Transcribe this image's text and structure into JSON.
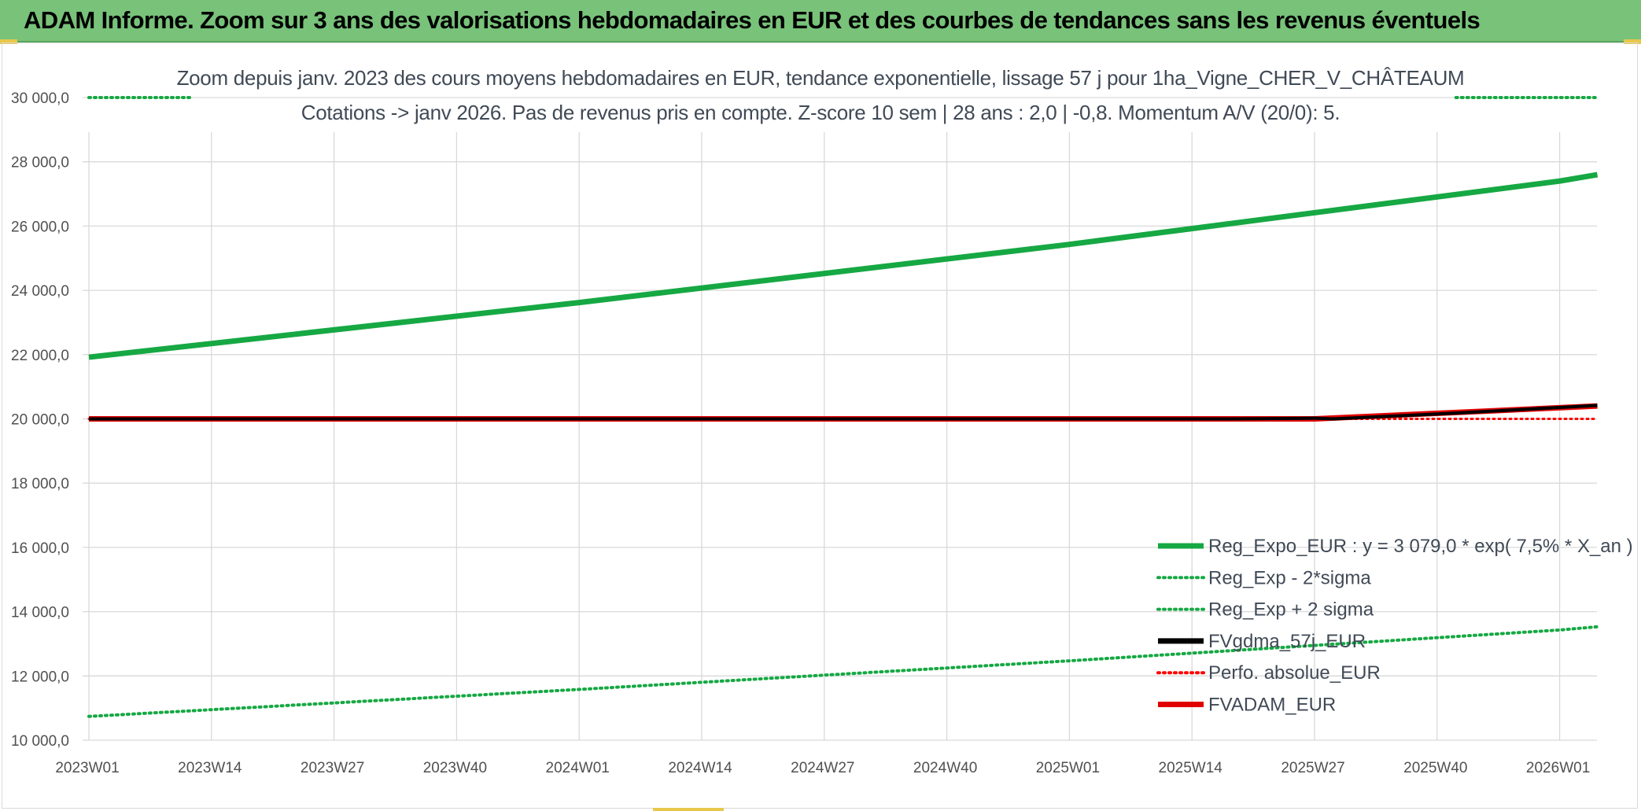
{
  "banner": {
    "title": "ADAM Informe. Zoom sur 3 ans des valorisations hebdomadaires en EUR et des courbes de tendances sans les revenus éventuels"
  },
  "chart_data": {
    "type": "line",
    "title_line1": "Zoom depuis janv. 2023 des cours moyens hebdomadaires en EUR, tendance exponentielle, lissage 57 j pour 1ha_Vigne_CHER_V_CHÂTEAUM",
    "title_line2": "Cotations -> janv 2026. Pas de revenus pris en compte. Z-score 10 sem | 28 ans : 2,0 | -0,8. Momentum A/V (20/0): 5.",
    "xlabel": "",
    "ylabel": "",
    "ylim": [
      10000,
      30000
    ],
    "y_ticks": [
      "10 000,0",
      "12 000,0",
      "14 000,0",
      "16 000,0",
      "18 000,0",
      "20 000,0",
      "22 000,0",
      "24 000,0",
      "26 000,0",
      "28 000,0",
      "30 000,0"
    ],
    "x_range": [
      0,
      162
    ],
    "x_ticks": [
      {
        "label": "2023W01",
        "week": 0
      },
      {
        "label": "2023W14",
        "week": 13
      },
      {
        "label": "2023W27",
        "week": 26
      },
      {
        "label": "2023W40",
        "week": 39
      },
      {
        "label": "2024W01",
        "week": 52
      },
      {
        "label": "2024W14",
        "week": 65
      },
      {
        "label": "2024W27",
        "week": 78
      },
      {
        "label": "2024W40",
        "week": 91
      },
      {
        "label": "2025W01",
        "week": 104
      },
      {
        "label": "2025W14",
        "week": 117
      },
      {
        "label": "2025W27",
        "week": 130
      },
      {
        "label": "2025W40",
        "week": 143
      },
      {
        "label": "2026W01",
        "week": 156
      }
    ],
    "grid": true,
    "legend_position": "bottom-right",
    "series": [
      {
        "name": "Reg_Expo_EUR : y = 3 079,0 * exp( 7,5% *  X_an )",
        "color": "#16a843",
        "style": "solid",
        "weeks": [
          0,
          52,
          104,
          156,
          160
        ],
        "values": [
          21920,
          23620,
          25430,
          27400,
          27600
        ]
      },
      {
        "name": "Reg_Exp - 2*sigma",
        "color": "#16a843",
        "style": "dotted",
        "weeks": [
          0,
          52,
          104,
          156,
          160
        ],
        "values": [
          10740,
          11580,
          12470,
          13430,
          13530
        ]
      },
      {
        "name": "Reg_Exp + 2 sigma",
        "color": "#16a843",
        "style": "dotted",
        "weeks": [
          0,
          11,
          145,
          160
        ],
        "values": [
          30000,
          30000,
          30000,
          30000
        ]
      },
      {
        "name": "FVgdma_57j_EUR",
        "color": "#000000",
        "style": "solid",
        "weeks": [
          0,
          121,
          130,
          132,
          145,
          160
        ],
        "values": [
          20000,
          20000,
          20020,
          20000,
          20180,
          20420
        ]
      },
      {
        "name": "Perfo. absolue_EUR",
        "color": "#ff0000",
        "style": "dotted",
        "weeks": [
          0,
          160
        ],
        "values": [
          20000,
          20000
        ]
      },
      {
        "name": "FVADAM_EUR",
        "color": "#e00000",
        "style": "solid",
        "weeks": [
          0,
          130,
          145,
          160
        ],
        "values": [
          20000,
          20000,
          20200,
          20400
        ]
      }
    ]
  }
}
